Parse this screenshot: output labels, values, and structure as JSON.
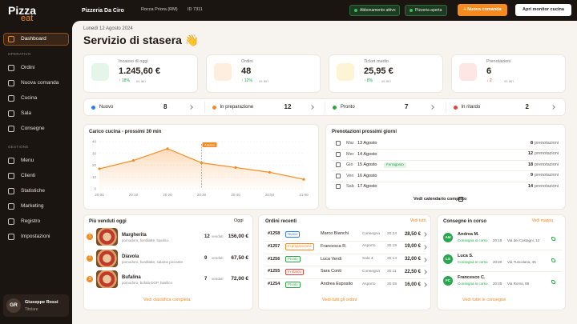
{
  "sidebar": {
    "logo": {
      "main": "Pizza",
      "accent": "eat"
    },
    "active": "Dashboard",
    "sections": [
      {
        "title": "OPERATIVO",
        "items": [
          "Ordini",
          "Nuova comanda",
          "Cucina",
          "Sala",
          "Consegne"
        ]
      },
      {
        "title": "GESTIONE",
        "items": [
          "Menu",
          "Clienti",
          "Statistiche",
          "Marketing",
          "Registro",
          "Impostazioni"
        ]
      }
    ],
    "user": {
      "initials": "GR",
      "name": "Giuseppe Rossi",
      "role": "Titolare"
    }
  },
  "topbar": {
    "restaurant": "Pizzeria Da Ciro",
    "location": "Rocca Priora (RM)",
    "id": "ID 7311",
    "badges": [
      "Abbonamento attivo",
      "Pizzeria aperta"
    ],
    "primary_button": "+ Nuova comanda",
    "secondary_button": "Apri monitor cucina"
  },
  "header": {
    "date": "Lunedì 12 Agosto 2024",
    "title": "Servizio di stasera 👋"
  },
  "kpis": [
    {
      "label": "Incasso di oggi",
      "value": "1.245,60 €",
      "change": "↑ 18%",
      "note": "vs ieri",
      "change_color": "#22a04b",
      "icon_color": "#e6f5ea"
    },
    {
      "label": "Ordini",
      "value": "48",
      "change": "↑ 12%",
      "note": "vs ieri",
      "change_color": "#22a04b",
      "icon_color": "#fdeedd"
    },
    {
      "label": "Ticket medio",
      "value": "25,95 €",
      "change": "↑ 8%",
      "note": "vs ieri",
      "change_color": "#22a04b",
      "icon_color": "#fdf4d6"
    },
    {
      "label": "Prenotazioni",
      "value": "6",
      "change": "↓ 2",
      "note": "vs ieri",
      "change_color": "#e0443a",
      "icon_color": "#fde6e4"
    }
  ],
  "status": [
    {
      "label": "Nuovo",
      "count": 8,
      "color": "#2f7fe6"
    },
    {
      "label": "In preparazione",
      "count": 12,
      "color": "#f58a1f"
    },
    {
      "label": "Pronto",
      "count": 7,
      "color": "#28a745"
    },
    {
      "label": "In ritardo",
      "count": 2,
      "color": "#e0443a"
    }
  ],
  "chart_data": {
    "type": "line",
    "title": "Carico cucina - prossimi 30 min",
    "categories": [
      "20:00",
      "20:10",
      "20:20",
      "20:30",
      "20:40",
      "20:50",
      "21:00"
    ],
    "values": [
      17,
      24,
      34,
      22,
      18,
      14,
      8
    ],
    "color": "#f58a1f",
    "ylim": [
      0,
      40
    ],
    "yticks": [
      0,
      10,
      20,
      30,
      40
    ],
    "grid": true,
    "annotation": {
      "label": "Adesso",
      "x": "20:30"
    }
  },
  "bookings": {
    "title": "Prenotazioni prossimi giorni",
    "days": [
      {
        "weekday": "Mar",
        "date": "13 Agosto",
        "count": 8,
        "unit": "prenotazioni"
      },
      {
        "weekday": "Mer",
        "date": "14 Agosto",
        "count": 12,
        "unit": "prenotazioni"
      },
      {
        "weekday": "Gio",
        "date": "15 Agosto",
        "tag": "Ferragosto",
        "count": 18,
        "unit": "prenotazioni"
      },
      {
        "weekday": "Ven",
        "date": "16 Agosto",
        "count": 9,
        "unit": "prenotazioni"
      },
      {
        "weekday": "Sab",
        "date": "17 Agosto",
        "count": 14,
        "unit": "prenotazioni"
      }
    ],
    "link": "Vedi calendario completo"
  },
  "top_sellers": {
    "title": "Più venduti oggi",
    "filter": "Oggi",
    "items": [
      {
        "rank": 1,
        "name": "Margherita",
        "ingredients": "pomodoro, fiordilatte, basilico",
        "sold": 12,
        "sold_label": "venduti",
        "revenue": "156,00 €"
      },
      {
        "rank": 2,
        "name": "Diavola",
        "ingredients": "pomodoro, fiordilatte, salame piccante",
        "sold": 9,
        "sold_label": "venduti",
        "revenue": "67,50 €"
      },
      {
        "rank": 3,
        "name": "Bufalina",
        "ingredients": "pomodoro, bufala DOP, basilico",
        "sold": 7,
        "sold_label": "venduti",
        "revenue": "72,00 €"
      }
    ],
    "link": "Vedi classifica completa"
  },
  "orders": {
    "title": "Ordini recenti",
    "link_top": "Vedi tutti",
    "rows": [
      {
        "id": "#1258",
        "status": "Nuovo",
        "status_color": "#2f7fe6",
        "customer": "Marco Bianchi",
        "channel": "Consegna",
        "time": "20:24",
        "total": "28,50 €"
      },
      {
        "id": "#1257",
        "status": "In preparazione",
        "status_color": "#f58a1f",
        "customer": "Francesca R.",
        "channel": "Asporto",
        "time": "20:19",
        "total": "19,00 €"
      },
      {
        "id": "#1256",
        "status": "Pronto",
        "status_color": "#28a745",
        "customer": "Luca Verdi",
        "channel": "Sala 4",
        "time": "20:14",
        "total": "32,00 €"
      },
      {
        "id": "#1255",
        "status": "In ritardo",
        "status_color": "#e0443a",
        "customer": "Sara Conti",
        "channel": "Consegna",
        "time": "20:11",
        "total": "22,50 €"
      },
      {
        "id": "#1254",
        "status": "Pronto",
        "status_color": "#28a745",
        "customer": "Andrea Esposito",
        "channel": "Asporto",
        "time": "20:08",
        "total": "16,00 €"
      }
    ],
    "link": "Vedi tutti gli ordini"
  },
  "deliveries": {
    "title": "Consegne in corso",
    "link_top": "Vedi mappa",
    "rows": [
      {
        "initials": "AM",
        "name": "Andrea M.",
        "status": "Consegna in corso",
        "time": "20:15",
        "address": "Via dei Castagni, 12"
      },
      {
        "initials": "LS",
        "name": "Luca S.",
        "status": "Consegna in corso",
        "time": "20:20",
        "address": "Via Tuscolana, 45"
      },
      {
        "initials": "FC",
        "name": "Francesco C.",
        "status": "Consegna in corso",
        "time": "20:25",
        "address": "Via Roma, 88"
      }
    ],
    "link": "Vedi tutte le consegne"
  }
}
